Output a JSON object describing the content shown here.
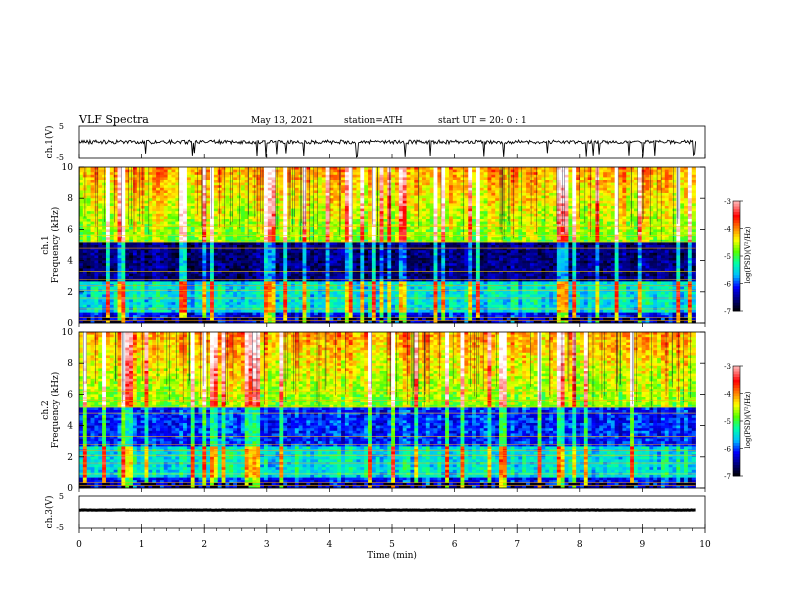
{
  "header": {
    "title": "VLF  Spectra",
    "date": "May 13, 2021",
    "station": "station=ATH",
    "start": "start  UT  =    20: 0   : 1"
  },
  "colors": {
    "background": "#ffffff",
    "trace": "#000000",
    "colormap": [
      "#000000",
      "#00007f",
      "#0000ff",
      "#00bfff",
      "#00ffaa",
      "#55ff00",
      "#ffff00",
      "#ff8000",
      "#ff0000",
      "#ff9999",
      "#ffffff"
    ]
  },
  "chart_data": [
    {
      "type": "line",
      "name": "ch1-waveform",
      "ylabel": "ch.1(V)",
      "ylim": [
        -5,
        5
      ],
      "yticks": [
        "5",
        "-5"
      ],
      "xlim": [
        0,
        10
      ],
      "baseline": 0,
      "noise_amplitude": 1.2
    },
    {
      "type": "heatmap",
      "name": "ch1-spectrogram",
      "ylabel_channel": "ch.1",
      "ylabel": "Frequency  (kHz)",
      "xlim": [
        0,
        9.85
      ],
      "ylim": [
        0,
        10
      ],
      "yticks": [
        "0",
        "2",
        "4",
        "6",
        "8",
        "10"
      ],
      "colorbar": {
        "label": "log(PSD)(V²/Hz)",
        "range": [
          -7,
          -3
        ],
        "ticks": [
          "-3",
          "-4",
          "-5",
          "-6",
          "-7"
        ]
      }
    },
    {
      "type": "heatmap",
      "name": "ch2-spectrogram",
      "ylabel_channel": "ch.2",
      "ylabel": "Frequency  (kHz)",
      "xlim": [
        0,
        9.85
      ],
      "ylim": [
        0,
        10
      ],
      "yticks": [
        "0",
        "2",
        "4",
        "6",
        "8",
        "10"
      ],
      "colorbar": {
        "label": "log(PSD)(V²/Hz)",
        "range": [
          -7,
          -3
        ],
        "ticks": [
          "-3",
          "-4",
          "-5",
          "-6",
          "-7"
        ]
      }
    },
    {
      "type": "line",
      "name": "ch3-waveform",
      "ylabel": "ch.3(V)",
      "ylim": [
        -5,
        5
      ],
      "yticks": [
        "5",
        "-5"
      ],
      "xlim": [
        0,
        10
      ],
      "baseline": 0.6,
      "noise_amplitude": 0.1
    }
  ],
  "xaxis": {
    "label": "Time  (min)",
    "range": [
      0,
      10
    ],
    "ticks": [
      "0",
      "1",
      "2",
      "3",
      "4",
      "5",
      "6",
      "7",
      "8",
      "9",
      "10"
    ]
  }
}
